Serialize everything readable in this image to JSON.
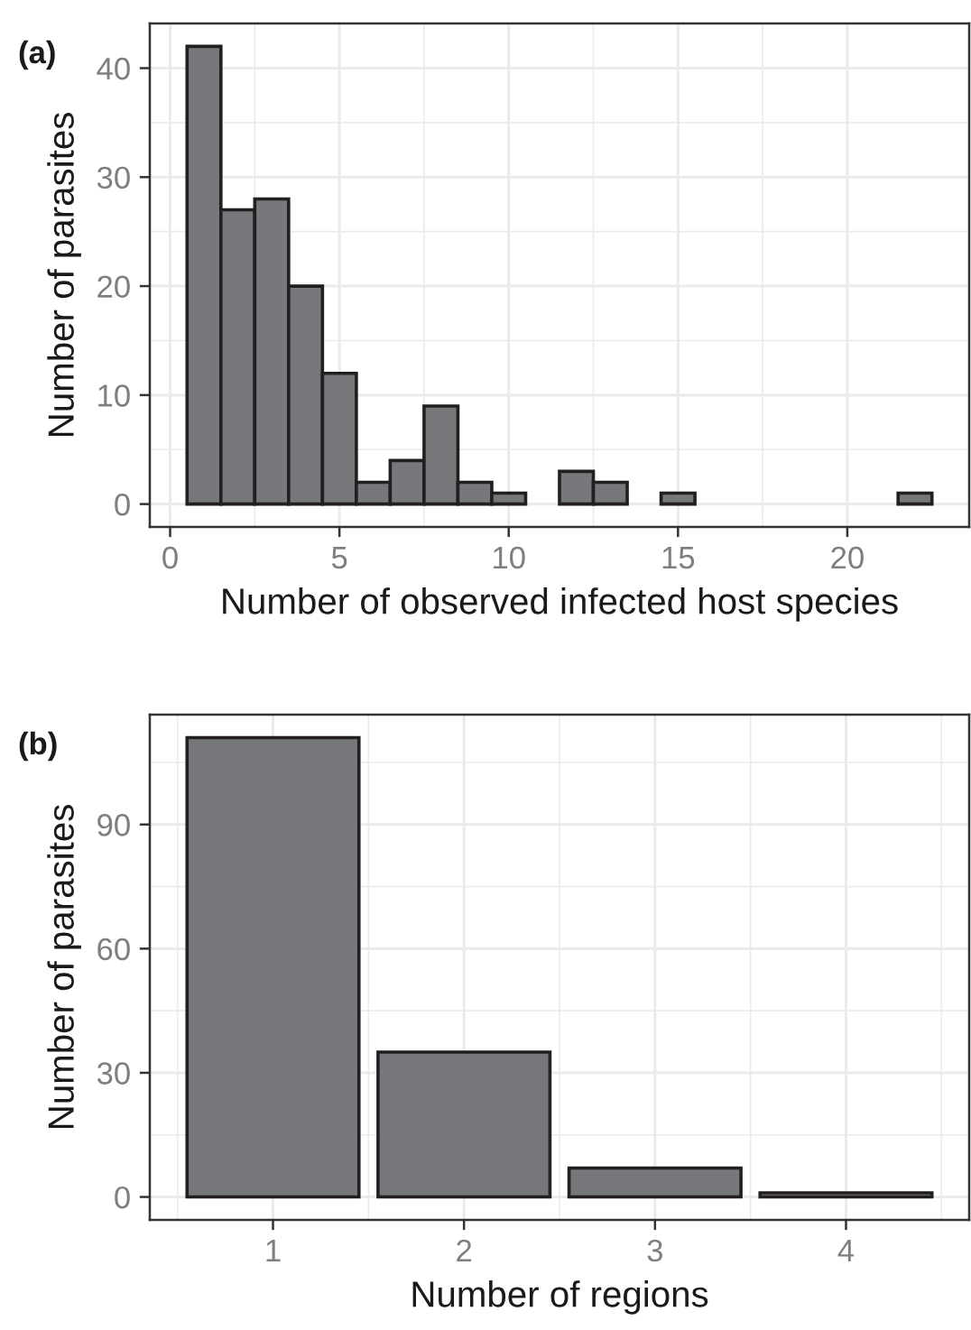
{
  "chart_data": [
    {
      "type": "histogram",
      "ylabel": "Number of parasites",
      "xlabel": "Number of observed infected host species",
      "annotations": [
        "(a)"
      ],
      "bins": [
        0.5,
        1.5,
        2.5,
        3.5,
        4.5,
        5.5,
        6.5,
        7.5,
        8.5,
        9.5,
        10.5,
        11.5,
        12.5,
        13.5,
        14.5,
        15.5,
        16.5,
        17.5,
        18.5,
        19.5,
        20.5,
        21.5,
        22.5
      ],
      "values": [
        42,
        27,
        28,
        20,
        12,
        2,
        4,
        9,
        2,
        1,
        0,
        3,
        2,
        0,
        1,
        0,
        0,
        0,
        0,
        0,
        0,
        1
      ],
      "color": "#77787b",
      "xlim": [
        -0.6,
        23.6
      ],
      "xticks": [
        0,
        5,
        10,
        15,
        20
      ],
      "ylim": [
        -2.1,
        44.1
      ],
      "yticks": [
        0,
        10,
        20,
        30,
        40
      ],
      "grid": true
    },
    {
      "type": "bar",
      "ylabel": "Number of parasites",
      "xlabel": "Number of regions",
      "annotations": [
        "(b)"
      ],
      "categories": [
        "1",
        "2",
        "3",
        "4"
      ],
      "values": [
        111,
        35,
        7,
        1
      ],
      "color": "#77787b",
      "ylim": [
        -5.55,
        116.55
      ],
      "yticks": [
        0,
        30,
        60,
        90
      ],
      "grid": true
    }
  ]
}
